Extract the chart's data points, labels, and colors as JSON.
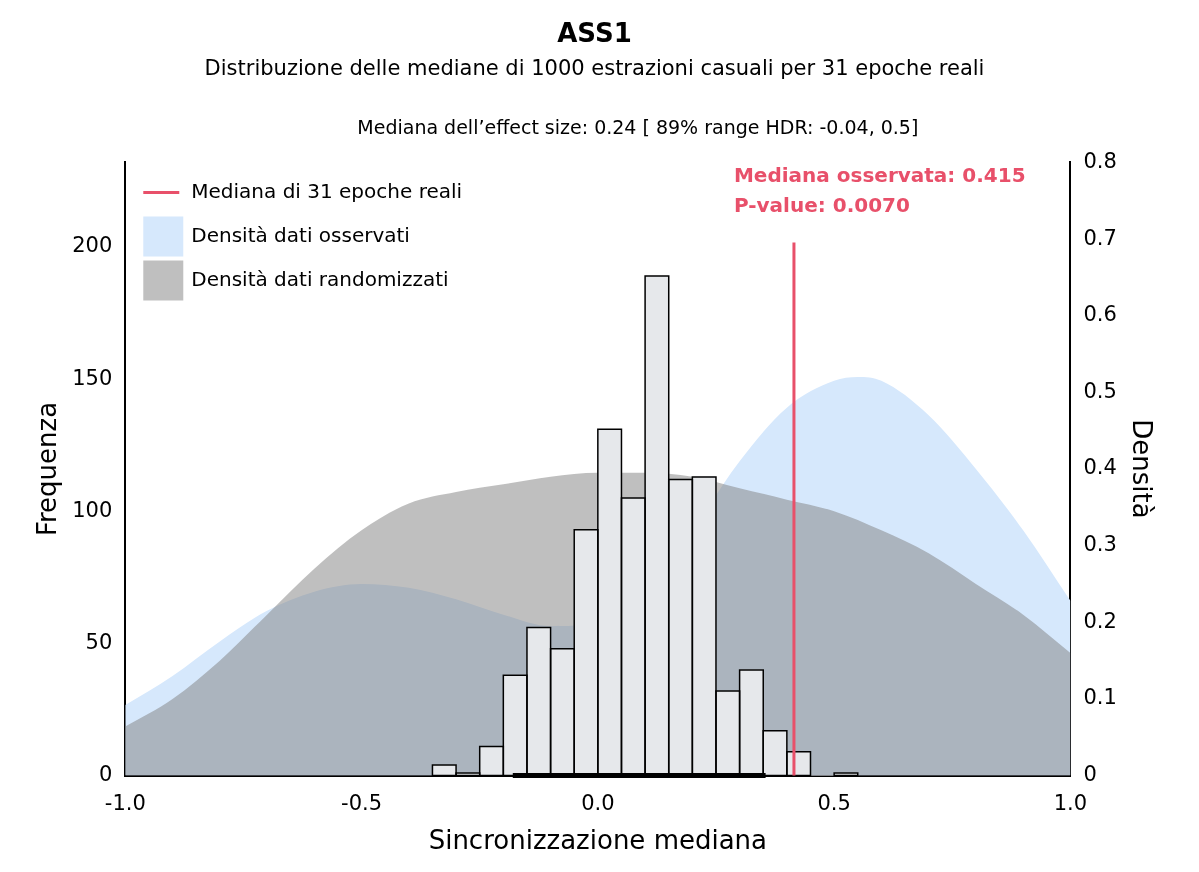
{
  "chart_data": {
    "type": "histogram",
    "title": "ASS1",
    "subtitle": "Distribuzione delle mediane di 1000 estrazioni casuali per 31 epoche reali",
    "annotations": [
      "Mediana dell’effect size: 0.24 [ 89% range HDR: -0.04, 0.5]",
      "Mediana osservata: 0.415",
      "P-value: 0.0070"
    ],
    "xlabel": "Sincronizzazione mediana",
    "ylabel": "Frequenza",
    "y2label": "Densità",
    "bins": [
      -0.35,
      -0.3,
      -0.25,
      -0.2,
      -0.15,
      -0.1,
      -0.05,
      0,
      0.05,
      0.1,
      0.15,
      0.2,
      0.25,
      0.3,
      0.35,
      0.4,
      0.45,
      0.5,
      0.55
    ],
    "values": [
      4,
      1,
      11,
      38,
      56,
      48,
      93,
      131,
      105,
      189,
      112,
      113,
      32,
      40,
      17,
      9,
      0,
      1
    ],
    "color": "#e6e8eb",
    "series": [
      {
        "type": "area",
        "name": "Densità dati osservati",
        "color": "#d6e8fc",
        "axis": "y2",
        "x": [
          -1,
          -0.9,
          -0.8,
          -0.7,
          -0.6,
          -0.5,
          -0.4,
          -0.3,
          -0.2,
          -0.1,
          0,
          0.1,
          0.2,
          0.3,
          0.4,
          0.5,
          0.55,
          0.6,
          0.7,
          0.8,
          0.9,
          1
        ],
        "values": [
          0.092,
          0.13,
          0.175,
          0.215,
          0.24,
          0.25,
          0.245,
          0.23,
          0.21,
          0.195,
          0.2,
          0.24,
          0.32,
          0.41,
          0.48,
          0.515,
          0.52,
          0.515,
          0.47,
          0.4,
          0.32,
          0.228
        ]
      },
      {
        "type": "area",
        "name": "Densità dati randomizzati",
        "color": "#808080",
        "axis": "y2",
        "x": [
          -1,
          -0.9,
          -0.8,
          -0.7,
          -0.6,
          -0.5,
          -0.4,
          -0.3,
          -0.2,
          -0.1,
          0,
          0.1,
          0.2,
          0.3,
          0.4,
          0.5,
          0.6,
          0.7,
          0.8,
          0.9,
          1
        ],
        "values": [
          0.064,
          0.1,
          0.15,
          0.21,
          0.27,
          0.32,
          0.355,
          0.37,
          0.38,
          0.39,
          0.395,
          0.395,
          0.39,
          0.375,
          0.36,
          0.345,
          0.32,
          0.29,
          0.25,
          0.21,
          0.16
        ]
      },
      {
        "type": "line",
        "color": "#000000",
        "x": [
          -0.18,
          0.355
        ],
        "values": [
          0,
          0
        ]
      }
    ],
    "ref_lines": [
      {
        "axis": "x",
        "value": 0.415,
        "label": "Mediana di 31 epoche reali",
        "color": "#e8506a"
      }
    ],
    "xlim": [
      -1,
      1
    ],
    "xticks": [
      {
        "value": -1,
        "label": "-1.0"
      },
      {
        "value": -0.5,
        "label": "-0.5"
      },
      {
        "value": 0,
        "label": "0.0"
      },
      {
        "value": 0.5,
        "label": "0.5"
      },
      {
        "value": 1,
        "label": "1.0"
      }
    ],
    "ylim": [
      0,
      232
    ],
    "yticks": [
      0,
      50,
      100,
      150,
      200
    ],
    "y2lim": [
      0,
      0.8
    ],
    "y2ticks": [
      0,
      0.1,
      0.2,
      0.3,
      0.4,
      0.5,
      0.6,
      0.7,
      0.8
    ],
    "grid": false,
    "legend": "top left"
  }
}
